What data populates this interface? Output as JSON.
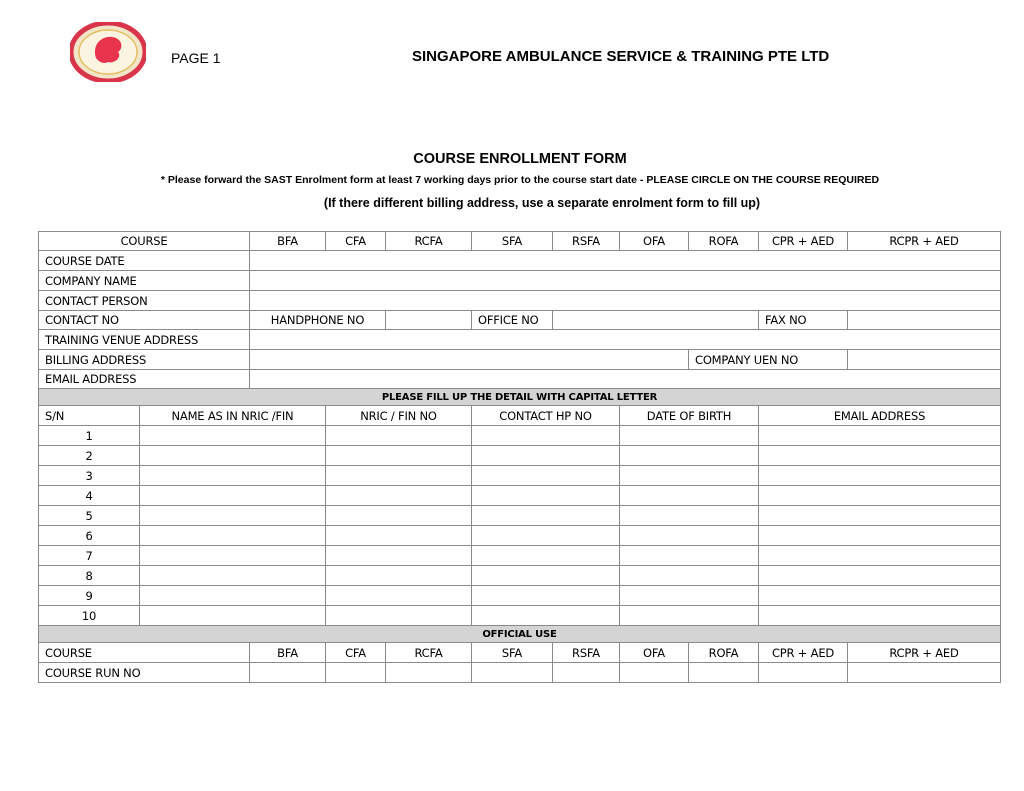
{
  "header": {
    "logo_text": "SINGAPORE AMBULANCE SERVICE & TRAINING",
    "page_label": "PAGE 1",
    "company": "SINGAPORE AMBULANCE SERVICE & TRAINING PTE LTD"
  },
  "form": {
    "title": "COURSE ENROLLMENT FORM",
    "note": "* Please forward the SAST Enrolment form at least 7 working days prior to the course start date - PLEASE CIRCLE ON THE COURSE REQUIRED",
    "billing_note": "(If there different billing address, use a separate enrolment form to fill up)"
  },
  "courses": [
    "BFA",
    "CFA",
    "RCFA",
    "SFA",
    "RSFA",
    "OFA",
    "ROFA",
    "CPR + AED",
    "RCPR + AED"
  ],
  "details": {
    "course": "COURSE",
    "course_date": "COURSE DATE",
    "company_name": "COMPANY NAME",
    "contact_person": "CONTACT PERSON",
    "contact_no": "CONTACT NO",
    "handphone_no": "HANDPHONE NO",
    "office_no": "OFFICE NO",
    "fax_no": "FAX NO",
    "training_venue": "TRAINING VENUE ADDRESS",
    "billing_address": "BILLING ADDRESS",
    "company_uen": "COMPANY UEN NO",
    "email_address": "EMAIL ADDRESS"
  },
  "participants": {
    "banner": "PLEASE FILL UP THE DETAIL WITH CAPITAL LETTER",
    "columns": [
      "S/N",
      "NAME AS IN NRIC /FIN",
      "NRIC / FIN NO",
      "CONTACT HP NO",
      "DATE OF BIRTH",
      "EMAIL ADDRESS"
    ],
    "rows": [
      "1",
      "2",
      "3",
      "4",
      "5",
      "6",
      "7",
      "8",
      "9",
      "10"
    ]
  },
  "official": {
    "banner": "OFFICIAL USE",
    "course": "COURSE",
    "course_run_no": "COURSE RUN NO"
  }
}
